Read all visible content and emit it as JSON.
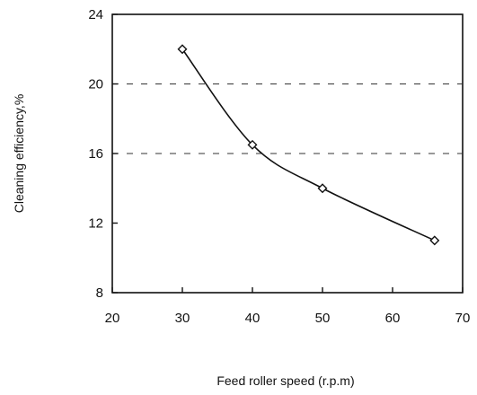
{
  "chart_data": {
    "type": "scatter",
    "title": "",
    "xlabel": "Feed roller speed (r.p.m)",
    "ylabel": "Cleaning efficiency,%",
    "xlim": [
      20,
      70
    ],
    "ylim": [
      8,
      24
    ],
    "xticks": [
      20,
      30,
      40,
      50,
      60,
      70
    ],
    "yticks": [
      8,
      12,
      16,
      20,
      24
    ],
    "gridlines": "horizontal dashed at 16 and 20",
    "series": [
      {
        "marker": "open-diamond",
        "trendline": "smooth-curve",
        "x": [
          30,
          40,
          50,
          66
        ],
        "y": [
          22,
          16.5,
          14,
          11
        ]
      }
    ]
  }
}
